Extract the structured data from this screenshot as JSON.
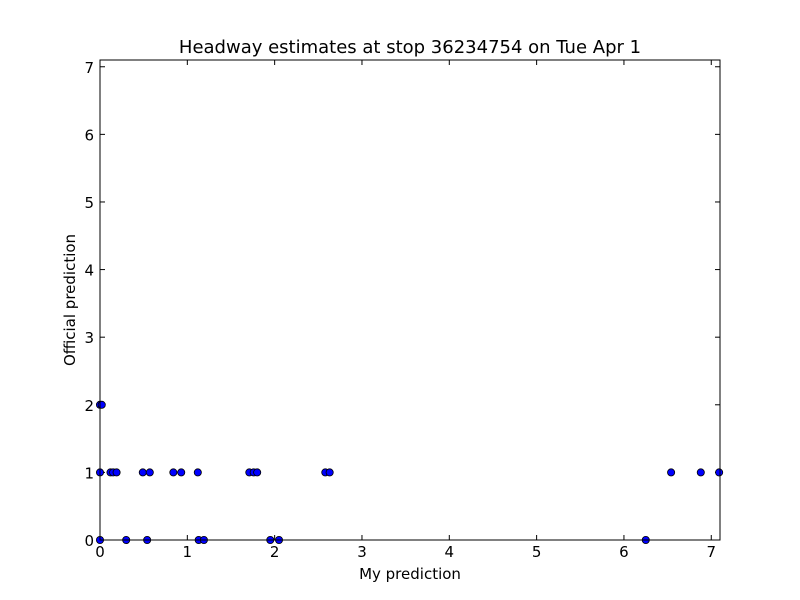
{
  "chart_data": {
    "type": "scatter",
    "title": "Headway estimates at stop 36234754 on Tue Apr 1",
    "xlabel": "My prediction",
    "ylabel": "Official prediction",
    "xlim": [
      0,
      7.1
    ],
    "ylim": [
      0,
      7.1
    ],
    "xticks": [
      "0",
      "1",
      "2",
      "3",
      "4",
      "5",
      "6",
      "7"
    ],
    "yticks": [
      "0",
      "1",
      "2",
      "3",
      "4",
      "5",
      "6",
      "7"
    ],
    "grid": false,
    "marker_color": "#0000ff",
    "points": [
      {
        "x": 0.0,
        "y": 2
      },
      {
        "x": 0.02,
        "y": 2
      },
      {
        "x": 0.0,
        "y": 1
      },
      {
        "x": 0.12,
        "y": 1
      },
      {
        "x": 0.15,
        "y": 1
      },
      {
        "x": 0.19,
        "y": 1
      },
      {
        "x": 0.49,
        "y": 1
      },
      {
        "x": 0.57,
        "y": 1
      },
      {
        "x": 0.84,
        "y": 1
      },
      {
        "x": 0.93,
        "y": 1
      },
      {
        "x": 1.12,
        "y": 1
      },
      {
        "x": 1.71,
        "y": 1
      },
      {
        "x": 1.76,
        "y": 1
      },
      {
        "x": 1.8,
        "y": 1
      },
      {
        "x": 2.58,
        "y": 1
      },
      {
        "x": 2.63,
        "y": 1
      },
      {
        "x": 6.54,
        "y": 1
      },
      {
        "x": 6.88,
        "y": 1
      },
      {
        "x": 7.09,
        "y": 1
      },
      {
        "x": 0.0,
        "y": 0
      },
      {
        "x": 0.3,
        "y": 0
      },
      {
        "x": 0.54,
        "y": 0
      },
      {
        "x": 1.13,
        "y": 0
      },
      {
        "x": 1.19,
        "y": 0
      },
      {
        "x": 1.95,
        "y": 0
      },
      {
        "x": 2.05,
        "y": 0
      },
      {
        "x": 6.25,
        "y": 0
      }
    ]
  }
}
